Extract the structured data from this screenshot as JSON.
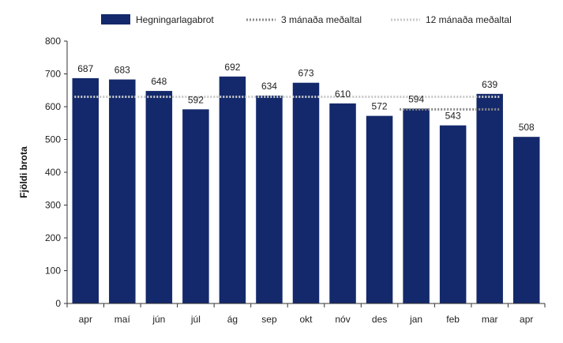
{
  "chart_data": {
    "type": "bar",
    "ylabel": "Fjöldi brota",
    "ylim": [
      0,
      800
    ],
    "yticks": [
      0,
      100,
      200,
      300,
      400,
      500,
      600,
      700,
      800
    ],
    "categories": [
      "apr",
      "maí",
      "jún",
      "júl",
      "ág",
      "sep",
      "okt",
      "nóv",
      "des",
      "jan",
      "feb",
      "mar",
      "apr"
    ],
    "series": [
      {
        "name": "Hegningarlagabrot",
        "type": "bar",
        "color": "#14296b",
        "values": [
          687,
          683,
          648,
          592,
          692,
          634,
          673,
          610,
          572,
          594,
          543,
          639,
          508
        ]
      },
      {
        "name": "3 mánaða meðaltal",
        "type": "line",
        "style": "dotted",
        "color": "#8a8a8a",
        "values": [
          null,
          null,
          null,
          null,
          null,
          null,
          null,
          null,
          null,
          592,
          592,
          592,
          null
        ]
      },
      {
        "name": "12 mánaða meðaltal",
        "type": "line",
        "style": "dotted",
        "color": "#c8c8c8",
        "values": [
          630,
          630,
          630,
          630,
          630,
          630,
          630,
          630,
          630,
          630,
          630,
          630,
          null
        ]
      }
    ],
    "legend_position": "top",
    "grid": false
  }
}
